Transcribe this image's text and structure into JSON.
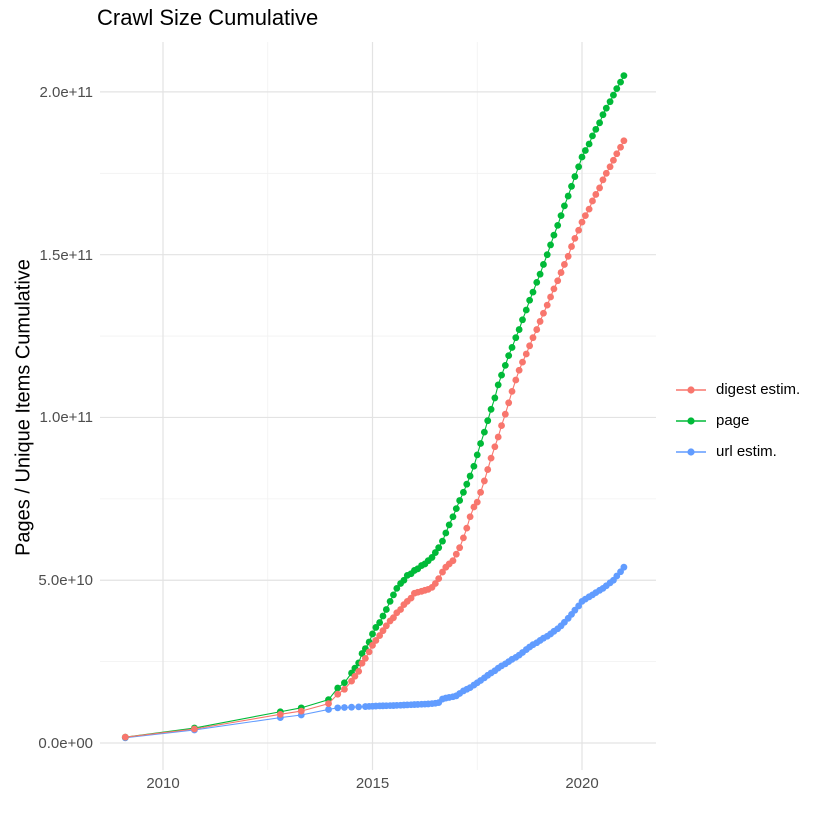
{
  "chart_data": {
    "type": "line",
    "title": "Crawl Size Cumulative",
    "ylabel": "Pages / Unique Items Cumulative",
    "xlabel": "",
    "value_unit_note": "point values given in billions (1e9) of pages / unique items",
    "grid": true,
    "legend_position": "right",
    "xlim": [
      2008.5,
      2021.6
    ],
    "ylim_e9": [
      -8,
      215
    ],
    "x_ticks": [
      {
        "value": 2010,
        "label": "2010"
      },
      {
        "value": 2015,
        "label": "2015"
      },
      {
        "value": 2020,
        "label": "2020"
      }
    ],
    "y_ticks": [
      {
        "value": 0,
        "label": "0.0e+00"
      },
      {
        "value": 50,
        "label": "5.0e+10"
      },
      {
        "value": 100,
        "label": "1.0e+11"
      },
      {
        "value": 150,
        "label": "1.5e+11"
      },
      {
        "value": 200,
        "label": "2.0e+11"
      }
    ],
    "x_minor_ticks": [
      2012.5,
      2017.5
    ],
    "y_minor_ticks": [
      25,
      75,
      125,
      175
    ],
    "legend": [
      {
        "label": "digest estim.",
        "color": "#F8766D"
      },
      {
        "label": "page",
        "color": "#00BA38"
      },
      {
        "label": "url estim.",
        "color": "#619CFF"
      }
    ],
    "series": [
      {
        "name": "digest estim.",
        "color": "#F8766D",
        "points": [
          [
            2009.1,
            1.8
          ],
          [
            2010.75,
            4.3
          ],
          [
            2012.8,
            8.8
          ],
          [
            2013.3,
            9.8
          ],
          [
            2013.95,
            12.1
          ],
          [
            2014.17,
            15
          ],
          [
            2014.33,
            16.5
          ],
          [
            2014.5,
            19
          ],
          [
            2014.58,
            20.5
          ],
          [
            2014.67,
            22
          ],
          [
            2014.75,
            24.5
          ],
          [
            2014.83,
            26
          ],
          [
            2014.92,
            28
          ],
          [
            2015.0,
            30
          ],
          [
            2015.08,
            31.5
          ],
          [
            2015.17,
            33
          ],
          [
            2015.25,
            34.5
          ],
          [
            2015.33,
            36
          ],
          [
            2015.42,
            37.5
          ],
          [
            2015.5,
            38.5
          ],
          [
            2015.58,
            40
          ],
          [
            2015.67,
            41
          ],
          [
            2015.75,
            42.5
          ],
          [
            2015.83,
            43.5
          ],
          [
            2015.92,
            44.5
          ],
          [
            2016.0,
            46
          ],
          [
            2016.08,
            46.3
          ],
          [
            2016.17,
            46.6
          ],
          [
            2016.25,
            46.9
          ],
          [
            2016.33,
            47.2
          ],
          [
            2016.42,
            47.8
          ],
          [
            2016.5,
            49
          ],
          [
            2016.58,
            50.5
          ],
          [
            2016.67,
            52.5
          ],
          [
            2016.75,
            54
          ],
          [
            2016.83,
            55
          ],
          [
            2016.92,
            56
          ],
          [
            2017.0,
            58
          ],
          [
            2017.08,
            60
          ],
          [
            2017.17,
            63
          ],
          [
            2017.25,
            66
          ],
          [
            2017.33,
            69.5
          ],
          [
            2017.42,
            72.5
          ],
          [
            2017.5,
            74
          ],
          [
            2017.58,
            77
          ],
          [
            2017.67,
            80.5
          ],
          [
            2017.75,
            84
          ],
          [
            2017.83,
            87.5
          ],
          [
            2017.92,
            91
          ],
          [
            2018.0,
            94
          ],
          [
            2018.08,
            97.5
          ],
          [
            2018.17,
            101
          ],
          [
            2018.25,
            104.5
          ],
          [
            2018.33,
            108
          ],
          [
            2018.42,
            111.5
          ],
          [
            2018.5,
            114.5
          ],
          [
            2018.58,
            117
          ],
          [
            2018.67,
            119.5
          ],
          [
            2018.75,
            122
          ],
          [
            2018.83,
            124.5
          ],
          [
            2018.92,
            127
          ],
          [
            2019.0,
            129.5
          ],
          [
            2019.08,
            132
          ],
          [
            2019.17,
            134.5
          ],
          [
            2019.25,
            137
          ],
          [
            2019.33,
            139.5
          ],
          [
            2019.42,
            142
          ],
          [
            2019.5,
            144.5
          ],
          [
            2019.58,
            147
          ],
          [
            2019.67,
            149.5
          ],
          [
            2019.75,
            152.5
          ],
          [
            2019.83,
            155
          ],
          [
            2019.92,
            157.5
          ],
          [
            2020.0,
            160
          ],
          [
            2020.08,
            162
          ],
          [
            2020.17,
            164
          ],
          [
            2020.25,
            166.5
          ],
          [
            2020.33,
            168.5
          ],
          [
            2020.42,
            170.5
          ],
          [
            2020.5,
            173
          ],
          [
            2020.58,
            175
          ],
          [
            2020.67,
            177
          ],
          [
            2020.75,
            179
          ],
          [
            2020.83,
            181
          ],
          [
            2020.92,
            183
          ],
          [
            2021.0,
            185
          ]
        ]
      },
      {
        "name": "page",
        "color": "#00BA38",
        "points": [
          [
            2009.1,
            1.8
          ],
          [
            2010.75,
            4.6
          ],
          [
            2012.8,
            9.6
          ],
          [
            2013.3,
            10.8
          ],
          [
            2013.95,
            13.3
          ],
          [
            2014.17,
            16.9
          ],
          [
            2014.33,
            18.5
          ],
          [
            2014.5,
            21.5
          ],
          [
            2014.58,
            23
          ],
          [
            2014.67,
            24.6
          ],
          [
            2014.75,
            27.5
          ],
          [
            2014.83,
            29
          ],
          [
            2014.92,
            31
          ],
          [
            2015.0,
            33.5
          ],
          [
            2015.08,
            35.5
          ],
          [
            2015.17,
            37
          ],
          [
            2015.25,
            39
          ],
          [
            2015.33,
            41
          ],
          [
            2015.42,
            43.5
          ],
          [
            2015.5,
            45.5
          ],
          [
            2015.58,
            47.5
          ],
          [
            2015.67,
            49
          ],
          [
            2015.75,
            50
          ],
          [
            2015.83,
            51.5
          ],
          [
            2015.92,
            52
          ],
          [
            2016.0,
            53
          ],
          [
            2016.08,
            53.5
          ],
          [
            2016.17,
            54.5
          ],
          [
            2016.25,
            55
          ],
          [
            2016.33,
            56
          ],
          [
            2016.42,
            57
          ],
          [
            2016.5,
            58.5
          ],
          [
            2016.58,
            60
          ],
          [
            2016.67,
            62
          ],
          [
            2016.75,
            64.5
          ],
          [
            2016.83,
            67
          ],
          [
            2016.92,
            69.5
          ],
          [
            2017.0,
            72
          ],
          [
            2017.08,
            74.5
          ],
          [
            2017.17,
            77
          ],
          [
            2017.25,
            79.5
          ],
          [
            2017.33,
            82
          ],
          [
            2017.42,
            85
          ],
          [
            2017.5,
            88.5
          ],
          [
            2017.58,
            92
          ],
          [
            2017.67,
            95.5
          ],
          [
            2017.75,
            99
          ],
          [
            2017.83,
            102.5
          ],
          [
            2017.92,
            106
          ],
          [
            2018.0,
            110
          ],
          [
            2018.08,
            113
          ],
          [
            2018.17,
            116
          ],
          [
            2018.25,
            119
          ],
          [
            2018.33,
            121.5
          ],
          [
            2018.42,
            124.5
          ],
          [
            2018.5,
            127
          ],
          [
            2018.58,
            130
          ],
          [
            2018.67,
            133
          ],
          [
            2018.75,
            136
          ],
          [
            2018.83,
            138.5
          ],
          [
            2018.92,
            141.5
          ],
          [
            2019.0,
            144
          ],
          [
            2019.08,
            147
          ],
          [
            2019.17,
            150
          ],
          [
            2019.25,
            153
          ],
          [
            2019.33,
            156
          ],
          [
            2019.42,
            159
          ],
          [
            2019.5,
            162
          ],
          [
            2019.58,
            165
          ],
          [
            2019.67,
            168
          ],
          [
            2019.75,
            171
          ],
          [
            2019.83,
            174
          ],
          [
            2019.92,
            177
          ],
          [
            2020.0,
            180
          ],
          [
            2020.08,
            182
          ],
          [
            2020.17,
            184
          ],
          [
            2020.25,
            186.5
          ],
          [
            2020.33,
            188.5
          ],
          [
            2020.42,
            190.5
          ],
          [
            2020.5,
            193
          ],
          [
            2020.58,
            195
          ],
          [
            2020.67,
            197
          ],
          [
            2020.75,
            199
          ],
          [
            2020.83,
            201
          ],
          [
            2020.92,
            203
          ],
          [
            2021.0,
            205
          ]
        ]
      },
      {
        "name": "url estim.",
        "color": "#619CFF",
        "points": [
          [
            2009.1,
            1.6
          ],
          [
            2010.75,
            4.0
          ],
          [
            2012.8,
            7.8
          ],
          [
            2013.3,
            8.6
          ],
          [
            2013.95,
            10.3
          ],
          [
            2014.17,
            10.8
          ],
          [
            2014.33,
            10.9
          ],
          [
            2014.5,
            11
          ],
          [
            2014.67,
            11.1
          ],
          [
            2014.83,
            11.2
          ],
          [
            2014.92,
            11.25
          ],
          [
            2015.0,
            11.3
          ],
          [
            2015.08,
            11.35
          ],
          [
            2015.17,
            11.4
          ],
          [
            2015.25,
            11.42
          ],
          [
            2015.33,
            11.45
          ],
          [
            2015.42,
            11.48
          ],
          [
            2015.5,
            11.5
          ],
          [
            2015.58,
            11.55
          ],
          [
            2015.67,
            11.6
          ],
          [
            2015.75,
            11.65
          ],
          [
            2015.83,
            11.7
          ],
          [
            2015.92,
            11.75
          ],
          [
            2016.0,
            11.8
          ],
          [
            2016.08,
            11.85
          ],
          [
            2016.17,
            11.9
          ],
          [
            2016.25,
            11.95
          ],
          [
            2016.33,
            12
          ],
          [
            2016.42,
            12.1
          ],
          [
            2016.5,
            12.2
          ],
          [
            2016.58,
            12.4
          ],
          [
            2016.67,
            13.5
          ],
          [
            2016.75,
            13.8
          ],
          [
            2016.83,
            14
          ],
          [
            2016.92,
            14.2
          ],
          [
            2017.0,
            14.5
          ],
          [
            2017.08,
            15.2
          ],
          [
            2017.17,
            16
          ],
          [
            2017.25,
            16.5
          ],
          [
            2017.33,
            17
          ],
          [
            2017.42,
            17.8
          ],
          [
            2017.5,
            18.5
          ],
          [
            2017.58,
            19.2
          ],
          [
            2017.67,
            20
          ],
          [
            2017.75,
            20.8
          ],
          [
            2017.83,
            21.5
          ],
          [
            2017.92,
            22.2
          ],
          [
            2018.0,
            23
          ],
          [
            2018.08,
            23.7
          ],
          [
            2018.17,
            24.3
          ],
          [
            2018.25,
            25
          ],
          [
            2018.33,
            25.7
          ],
          [
            2018.42,
            26.3
          ],
          [
            2018.5,
            27
          ],
          [
            2018.58,
            27.8
          ],
          [
            2018.67,
            28.7
          ],
          [
            2018.75,
            29.5
          ],
          [
            2018.83,
            30.2
          ],
          [
            2018.92,
            30.8
          ],
          [
            2019.0,
            31.5
          ],
          [
            2019.08,
            32.2
          ],
          [
            2019.17,
            32.8
          ],
          [
            2019.25,
            33.5
          ],
          [
            2019.33,
            34.3
          ],
          [
            2019.42,
            35.1
          ],
          [
            2019.5,
            36
          ],
          [
            2019.58,
            37.1
          ],
          [
            2019.67,
            38.3
          ],
          [
            2019.75,
            39.5
          ],
          [
            2019.83,
            40.8
          ],
          [
            2019.92,
            42.1
          ],
          [
            2020.0,
            43.5
          ],
          [
            2020.08,
            44.2
          ],
          [
            2020.17,
            44.9
          ],
          [
            2020.25,
            45.5
          ],
          [
            2020.33,
            46.2
          ],
          [
            2020.42,
            46.9
          ],
          [
            2020.5,
            47.5
          ],
          [
            2020.58,
            48.3
          ],
          [
            2020.67,
            49.2
          ],
          [
            2020.75,
            50
          ],
          [
            2020.83,
            51.3
          ],
          [
            2020.92,
            52.6
          ],
          [
            2021.0,
            54
          ]
        ]
      }
    ]
  },
  "colors": {
    "background": "#FFFFFF",
    "grid_major": "#E3E3E3",
    "grid_minor": "#F1F1F1",
    "axis_text": "#4D4D4D",
    "title_text": "#000000"
  }
}
